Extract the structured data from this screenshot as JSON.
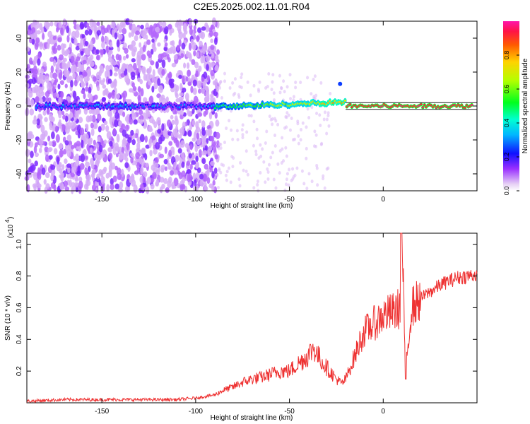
{
  "title": "C2E5.2025.002.11.01.R04",
  "chart_data": [
    {
      "type": "heatmap",
      "xlabel": "Height of straight line (km)",
      "ylabel": "Frequency (Hz)",
      "xlim": [
        -190,
        50
      ],
      "ylim": [
        -50,
        50
      ],
      "xticks": [
        -150,
        -100,
        -50,
        0
      ],
      "yticks": [
        -40,
        -20,
        0,
        20,
        40
      ],
      "colorbar": {
        "label": "Normalized spectral amplitude",
        "range": [
          0,
          1
        ],
        "ticks": [
          "0.0",
          "0.2",
          "0.4",
          "0.6",
          "0.8"
        ]
      }
    },
    {
      "type": "line",
      "xlabel": "Height of straight line (km)",
      "ylabel": "SNR (10 * v/v)",
      "multiplier": "(x10",
      "multiplier_exp": "4",
      "xlim": [
        -190,
        50
      ],
      "ylim": [
        0,
        1.07
      ],
      "xticks": [
        -150,
        -100,
        -50,
        0
      ],
      "yticks": [
        0.2,
        0.4,
        0.6,
        0.8,
        1.0
      ],
      "ytick_labels": [
        "0.2",
        "0.4",
        "0.6",
        "0.8",
        "1.0"
      ],
      "color": "#ee3333",
      "series": [
        {
          "x": [
            -190,
            -170,
            -160,
            -140,
            -120,
            -110,
            -100,
            -95,
            -90,
            -85,
            -80,
            -75,
            -70,
            -65,
            -60,
            -55,
            -50,
            -45,
            -40,
            -37,
            -35,
            -30,
            -25,
            -22,
            -20,
            -15,
            -12,
            -10,
            -5,
            0,
            5,
            9,
            10,
            11,
            12,
            15,
            20,
            25,
            30,
            35,
            40,
            45,
            50
          ],
          "values": [
            0.01,
            0.02,
            0.02,
            0.02,
            0.02,
            0.02,
            0.03,
            0.04,
            0.05,
            0.08,
            0.1,
            0.13,
            0.15,
            0.16,
            0.18,
            0.2,
            0.2,
            0.25,
            0.3,
            0.35,
            0.3,
            0.22,
            0.15,
            0.12,
            0.15,
            0.3,
            0.4,
            0.45,
            0.5,
            0.55,
            0.57,
            0.6,
            1.0,
            0.6,
            0.2,
            0.6,
            0.66,
            0.7,
            0.74,
            0.77,
            0.79,
            0.8,
            0.81
          ]
        }
      ]
    }
  ]
}
